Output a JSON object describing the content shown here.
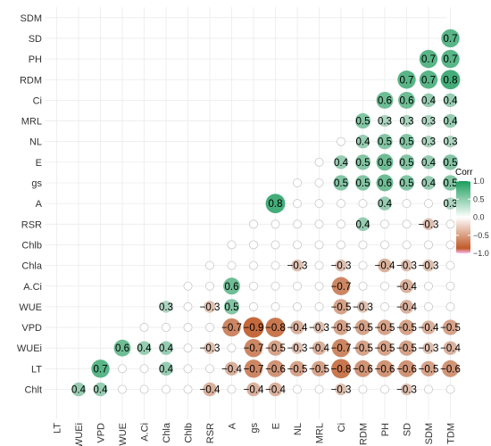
{
  "chart_data": {
    "type": "heatmap",
    "subtype": "correlation-matrix (lower triangle as circles, only significant coefficients labelled)",
    "row_labels": [
      "SDM",
      "SD",
      "PH",
      "RDM",
      "Ci",
      "MRL",
      "NL",
      "E",
      "gs",
      "A",
      "RSR",
      "Chlb",
      "Chla",
      "A.Ci",
      "WUE",
      "VPD",
      "WUEi",
      "LT",
      "Chlt"
    ],
    "column_labels": [
      "LT",
      "WUEi",
      "VPD",
      "WUE",
      "A.Ci",
      "Chla",
      "Chlb",
      "RSR",
      "A",
      "gs",
      "E",
      "NL",
      "MRL",
      "Ci",
      "RDM",
      "PH",
      "SD",
      "SDM",
      "TDM"
    ],
    "cells": [
      {
        "row": "SDM",
        "col": "TDM",
        "value": 0.8
      },
      {
        "row": "SD",
        "col": "SDM",
        "value": 0.7
      },
      {
        "row": "SD",
        "col": "TDM",
        "value": 0.7
      },
      {
        "row": "PH",
        "col": "SD",
        "value": 0.8
      },
      {
        "row": "PH",
        "col": "SDM",
        "value": 0.7
      },
      {
        "row": "PH",
        "col": "TDM",
        "value": 0.7
      },
      {
        "row": "RDM",
        "col": "PH",
        "value": 0.7
      },
      {
        "row": "RDM",
        "col": "SD",
        "value": 0.7
      },
      {
        "row": "RDM",
        "col": "SDM",
        "value": 0.7
      },
      {
        "row": "RDM",
        "col": "TDM",
        "value": 0.8
      },
      {
        "row": "Ci",
        "col": "RDM",
        "value": 0.5
      },
      {
        "row": "Ci",
        "col": "PH",
        "value": 0.6
      },
      {
        "row": "Ci",
        "col": "SD",
        "value": 0.6
      },
      {
        "row": "Ci",
        "col": "SDM",
        "value": 0.4
      },
      {
        "row": "Ci",
        "col": "TDM",
        "value": 0.4
      },
      {
        "row": "MRL",
        "col": "RDM",
        "value": 0.5
      },
      {
        "row": "MRL",
        "col": "PH",
        "value": 0.3
      },
      {
        "row": "MRL",
        "col": "SD",
        "value": 0.3
      },
      {
        "row": "MRL",
        "col": "SDM",
        "value": 0.3
      },
      {
        "row": "MRL",
        "col": "TDM",
        "value": 0.4
      },
      {
        "row": "NL",
        "col": "RDM",
        "value": 0.4
      },
      {
        "row": "NL",
        "col": "PH",
        "value": 0.5
      },
      {
        "row": "NL",
        "col": "SD",
        "value": 0.5
      },
      {
        "row": "NL",
        "col": "SDM",
        "value": 0.3
      },
      {
        "row": "NL",
        "col": "TDM",
        "value": 0.3
      },
      {
        "row": "E",
        "col": "Ci",
        "value": 0.4
      },
      {
        "row": "E",
        "col": "RDM",
        "value": 0.5
      },
      {
        "row": "E",
        "col": "PH",
        "value": 0.6
      },
      {
        "row": "E",
        "col": "SD",
        "value": 0.5
      },
      {
        "row": "E",
        "col": "SDM",
        "value": 0.4
      },
      {
        "row": "E",
        "col": "TDM",
        "value": 0.5
      },
      {
        "row": "gs",
        "col": "E",
        "value": 0.9
      },
      {
        "row": "gs",
        "col": "Ci",
        "value": 0.5
      },
      {
        "row": "gs",
        "col": "RDM",
        "value": 0.5
      },
      {
        "row": "gs",
        "col": "PH",
        "value": 0.6
      },
      {
        "row": "gs",
        "col": "SD",
        "value": 0.5
      },
      {
        "row": "gs",
        "col": "SDM",
        "value": 0.4
      },
      {
        "row": "gs",
        "col": "TDM",
        "value": 0.5
      },
      {
        "row": "A",
        "col": "gs",
        "value": 0.8
      },
      {
        "row": "A",
        "col": "E",
        "value": 0.8
      },
      {
        "row": "A",
        "col": "PH",
        "value": 0.4
      },
      {
        "row": "A",
        "col": "TDM",
        "value": 0.3
      },
      {
        "row": "RSR",
        "col": "RDM",
        "value": 0.4
      },
      {
        "row": "RSR",
        "col": "SDM",
        "value": -0.3
      },
      {
        "row": "Chla",
        "col": "Chlb",
        "value": 0.5
      },
      {
        "row": "Chla",
        "col": "NL",
        "value": -0.3
      },
      {
        "row": "Chla",
        "col": "Ci",
        "value": -0.3
      },
      {
        "row": "Chla",
        "col": "PH",
        "value": -0.4
      },
      {
        "row": "Chla",
        "col": "SD",
        "value": -0.3
      },
      {
        "row": "Chla",
        "col": "SDM",
        "value": -0.3
      },
      {
        "row": "A.Ci",
        "col": "Chla",
        "value": 0.4
      },
      {
        "row": "A.Ci",
        "col": "A",
        "value": 0.6
      },
      {
        "row": "A.Ci",
        "col": "Ci",
        "value": -0.7
      },
      {
        "row": "A.Ci",
        "col": "SD",
        "value": -0.4
      },
      {
        "row": "WUE",
        "col": "A.Ci",
        "value": 0.7
      },
      {
        "row": "WUE",
        "col": "Chla",
        "value": 0.3
      },
      {
        "row": "WUE",
        "col": "RSR",
        "value": -0.3
      },
      {
        "row": "WUE",
        "col": "A",
        "value": 0.5
      },
      {
        "row": "WUE",
        "col": "Ci",
        "value": -0.5
      },
      {
        "row": "WUE",
        "col": "RDM",
        "value": -0.3
      },
      {
        "row": "WUE",
        "col": "SD",
        "value": -0.4
      },
      {
        "row": "VPD",
        "col": "A",
        "value": -0.7
      },
      {
        "row": "VPD",
        "col": "gs",
        "value": -0.9
      },
      {
        "row": "VPD",
        "col": "E",
        "value": -0.8
      },
      {
        "row": "VPD",
        "col": "NL",
        "value": -0.4
      },
      {
        "row": "VPD",
        "col": "MRL",
        "value": -0.3
      },
      {
        "row": "VPD",
        "col": "Ci",
        "value": -0.5
      },
      {
        "row": "VPD",
        "col": "RDM",
        "value": -0.5
      },
      {
        "row": "VPD",
        "col": "PH",
        "value": -0.5
      },
      {
        "row": "VPD",
        "col": "SD",
        "value": -0.5
      },
      {
        "row": "VPD",
        "col": "SDM",
        "value": -0.4
      },
      {
        "row": "VPD",
        "col": "TDM",
        "value": -0.5
      },
      {
        "row": "WUEi",
        "col": "VPD",
        "value": 0.7
      },
      {
        "row": "WUEi",
        "col": "WUE",
        "value": 0.6
      },
      {
        "row": "WUEi",
        "col": "A.Ci",
        "value": 0.4
      },
      {
        "row": "WUEi",
        "col": "Chla",
        "value": 0.4
      },
      {
        "row": "WUEi",
        "col": "RSR",
        "value": -0.3
      },
      {
        "row": "WUEi",
        "col": "gs",
        "value": -0.7
      },
      {
        "row": "WUEi",
        "col": "E",
        "value": -0.5
      },
      {
        "row": "WUEi",
        "col": "NL",
        "value": -0.3
      },
      {
        "row": "WUEi",
        "col": "MRL",
        "value": -0.4
      },
      {
        "row": "WUEi",
        "col": "Ci",
        "value": -0.7
      },
      {
        "row": "WUEi",
        "col": "RDM",
        "value": -0.5
      },
      {
        "row": "WUEi",
        "col": "PH",
        "value": -0.5
      },
      {
        "row": "WUEi",
        "col": "SD",
        "value": -0.5
      },
      {
        "row": "WUEi",
        "col": "SDM",
        "value": -0.3
      },
      {
        "row": "WUEi",
        "col": "TDM",
        "value": -0.4
      },
      {
        "row": "LT",
        "col": "WUEi",
        "value": 0.6
      },
      {
        "row": "LT",
        "col": "VPD",
        "value": 0.7
      },
      {
        "row": "LT",
        "col": "Chla",
        "value": 0.4
      },
      {
        "row": "LT",
        "col": "A",
        "value": -0.4
      },
      {
        "row": "LT",
        "col": "gs",
        "value": -0.7
      },
      {
        "row": "LT",
        "col": "E",
        "value": -0.6
      },
      {
        "row": "LT",
        "col": "NL",
        "value": -0.5
      },
      {
        "row": "LT",
        "col": "MRL",
        "value": -0.5
      },
      {
        "row": "LT",
        "col": "Ci",
        "value": -0.8
      },
      {
        "row": "LT",
        "col": "RDM",
        "value": -0.6
      },
      {
        "row": "LT",
        "col": "PH",
        "value": -0.6
      },
      {
        "row": "LT",
        "col": "SD",
        "value": -0.6
      },
      {
        "row": "LT",
        "col": "SDM",
        "value": -0.5
      },
      {
        "row": "LT",
        "col": "TDM",
        "value": -0.6
      },
      {
        "row": "Chlt",
        "col": "WUEi",
        "value": 0.4
      },
      {
        "row": "Chlt",
        "col": "VPD",
        "value": 0.4
      },
      {
        "row": "Chlt",
        "col": "RSR",
        "value": -0.4
      },
      {
        "row": "Chlt",
        "col": "gs",
        "value": -0.4
      },
      {
        "row": "Chlt",
        "col": "E",
        "value": -0.4
      },
      {
        "row": "Chlt",
        "col": "Ci",
        "value": -0.3
      },
      {
        "row": "Chlt",
        "col": "SD",
        "value": -0.3
      }
    ],
    "legend": {
      "title": "Corr",
      "ticks": [
        1.0,
        0.5,
        0.0,
        -0.5,
        -1.0
      ],
      "tick_labels": [
        "1.0",
        "0.5",
        "0.0",
        "−0.5",
        "−1.0"
      ],
      "placement": "right",
      "colors": {
        "positive": "#1a9e5c",
        "zero": "#ffffff",
        "negative": "#c05a28",
        "minus_one": "#ffb8f0"
      }
    },
    "grid": true,
    "color_range": [
      -1,
      1
    ]
  }
}
